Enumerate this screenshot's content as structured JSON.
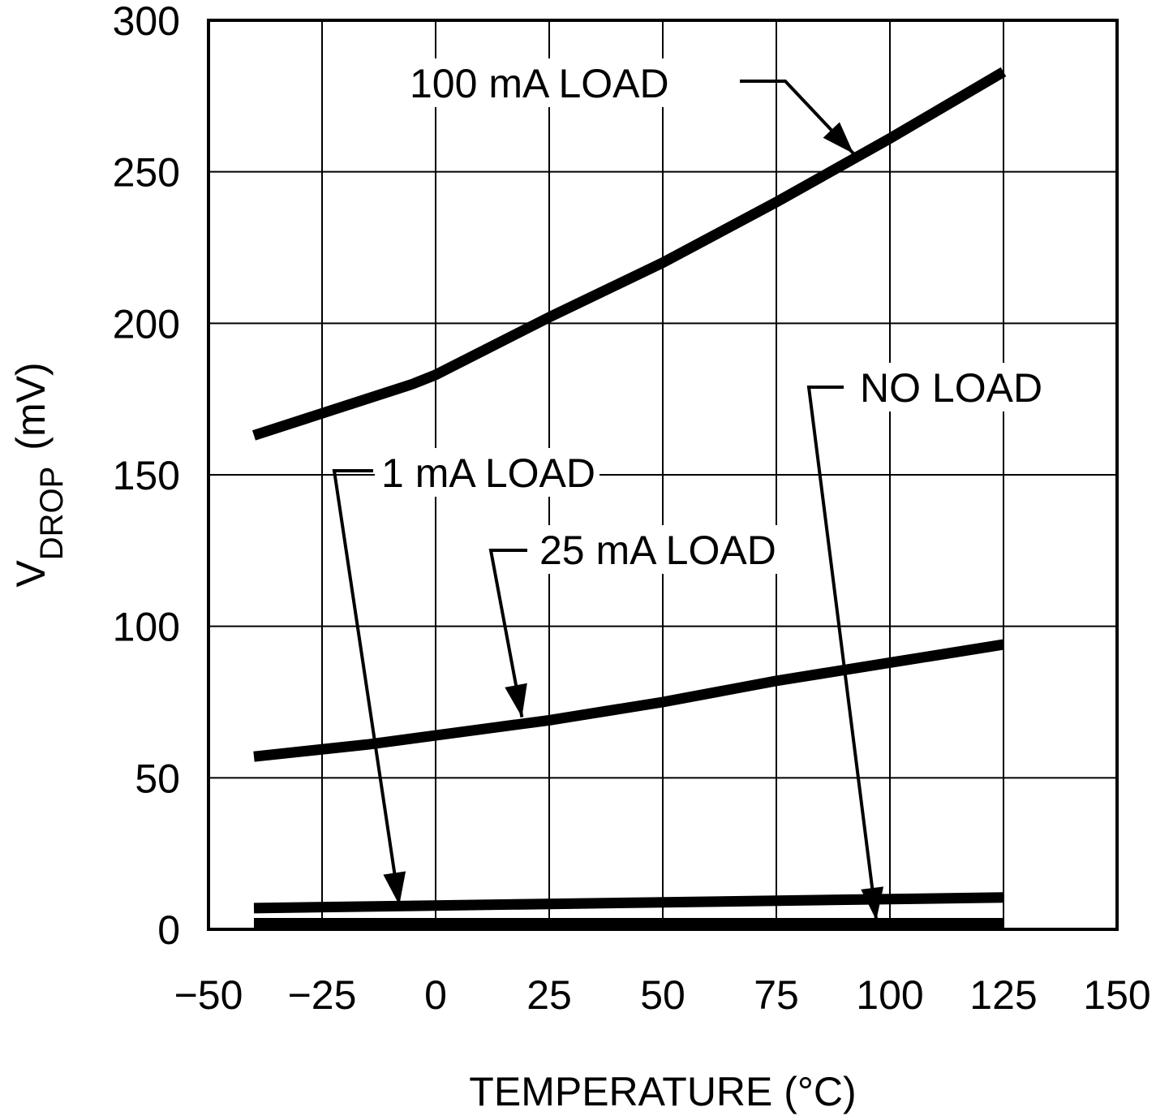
{
  "chart_data": {
    "type": "line",
    "title": "",
    "xlabel": "TEMPERATURE (°C)",
    "ylabel_main": "V",
    "ylabel_sub": "DROP",
    "ylabel_unit": "(mV)",
    "xlim": [
      -50,
      150
    ],
    "ylim": [
      0,
      300
    ],
    "xticks": [
      -50,
      -25,
      0,
      25,
      50,
      75,
      100,
      125,
      150
    ],
    "yticks": [
      0,
      50,
      100,
      150,
      200,
      250,
      300
    ],
    "xtick_labels": [
      "−50",
      "−25",
      "0",
      "25",
      "50",
      "75",
      "100",
      "125",
      "150"
    ],
    "ytick_labels": [
      "0",
      "50",
      "100",
      "150",
      "200",
      "250",
      "300"
    ],
    "grid": true,
    "line_color": "#000000",
    "series": [
      {
        "name": "100 mA LOAD",
        "x": [
          -40,
          -5,
          0,
          25,
          50,
          75,
          100,
          125
        ],
        "y": [
          163,
          180,
          183,
          202,
          220,
          240,
          261,
          283
        ]
      },
      {
        "name": "25 mA LOAD",
        "x": [
          -40,
          -15,
          0,
          25,
          50,
          75,
          100,
          125
        ],
        "y": [
          57,
          61,
          64,
          69,
          75,
          82,
          88,
          94
        ]
      },
      {
        "name": "1 mA LOAD",
        "x": [
          -40,
          125
        ],
        "y": [
          7,
          10.5
        ]
      },
      {
        "name": "NO LOAD",
        "x": [
          -40,
          125
        ],
        "y": [
          2,
          2
        ]
      }
    ],
    "annotations": [
      {
        "text": "100 mA LOAD",
        "series": 0,
        "arrow_to": [
          92,
          256
        ]
      },
      {
        "text": "NO LOAD",
        "series": 3,
        "arrow_to": [
          97,
          3
        ]
      },
      {
        "text": "1 mA LOAD",
        "series": 2,
        "arrow_to": [
          -8,
          8
        ]
      },
      {
        "text": "25 mA LOAD",
        "series": 1,
        "arrow_to": [
          19,
          70
        ]
      }
    ]
  }
}
